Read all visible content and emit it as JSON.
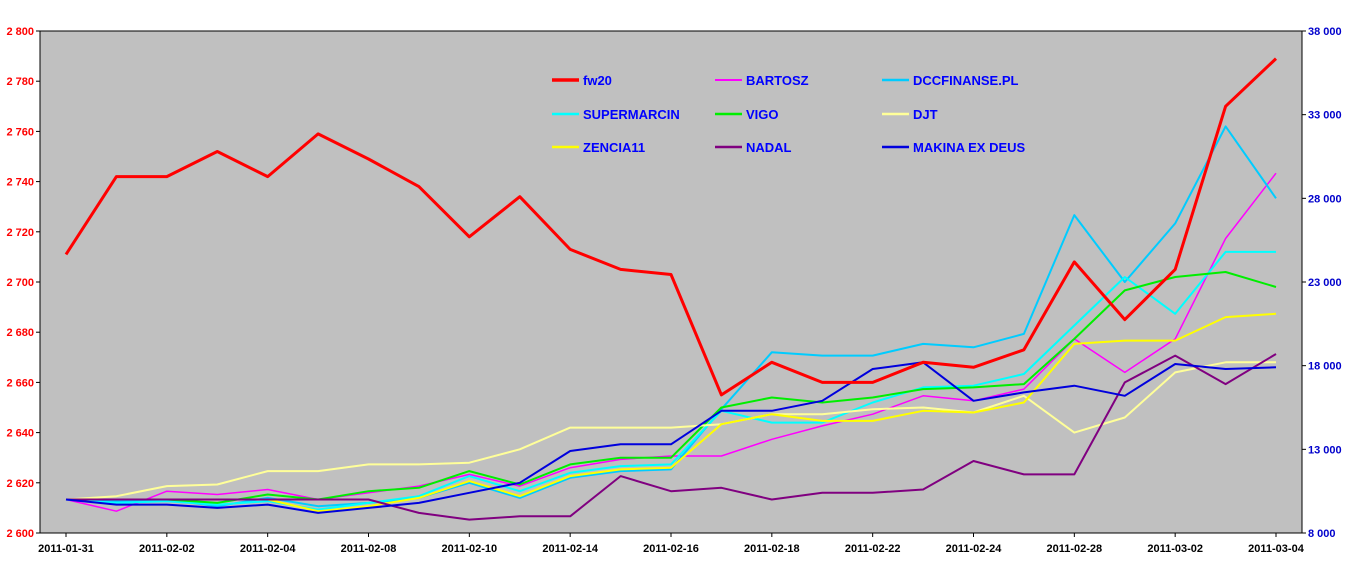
{
  "chart_data": {
    "type": "line",
    "title": "",
    "xlabel": "",
    "ylabel": "",
    "grid": false,
    "legend_position": "top-center",
    "background": "#c0c0c0",
    "left_axis": {
      "ylim": [
        2600,
        2800
      ],
      "tick_labels": [
        "2 600",
        "2 620",
        "2 640",
        "2 660",
        "2 680",
        "2 700",
        "2 720",
        "2 740",
        "2 760",
        "2 780",
        "2 800"
      ],
      "color": "#ff0000"
    },
    "right_axis": {
      "ylim": [
        8000,
        38000
      ],
      "tick_labels": [
        "8 000",
        "13 000",
        "18 000",
        "23 000",
        "28 000",
        "33 000",
        "38 000"
      ],
      "color": "#0000cc"
    },
    "x_tick_labels": [
      "2011-01-31",
      "2011-02-02",
      "2011-02-04",
      "2011-02-08",
      "2011-02-10",
      "2011-02-14",
      "2011-02-16",
      "2011-02-18",
      "2011-02-22",
      "2011-02-24",
      "2011-02-28",
      "2011-03-02",
      "2011-03-04"
    ],
    "x": [
      "2011-01-31",
      "2011-02-01",
      "2011-02-02",
      "2011-02-03",
      "2011-02-04",
      "2011-02-07",
      "2011-02-08",
      "2011-02-09",
      "2011-02-10",
      "2011-02-11",
      "2011-02-14",
      "2011-02-15",
      "2011-02-16",
      "2011-02-17",
      "2011-02-18",
      "2011-02-21",
      "2011-02-22",
      "2011-02-23",
      "2011-02-24",
      "2011-02-25",
      "2011-02-28",
      "2011-03-01",
      "2011-03-02",
      "2011-03-03",
      "2011-03-04"
    ],
    "series": [
      {
        "name": "fw20",
        "axis": "left",
        "color": "#ff0000",
        "width": 3,
        "values": [
          2711,
          2742,
          2742,
          2752,
          2742,
          2759,
          2749,
          2738,
          2718,
          2734,
          2713,
          2705,
          2703,
          2655,
          2668,
          2660,
          2660,
          2668,
          2666,
          2673,
          2708,
          2685,
          2705,
          2770,
          2789
        ]
      },
      {
        "name": "BARTOSZ",
        "axis": "right",
        "color": "#ff00ff",
        "width": 1.5,
        "values": [
          10000,
          9300,
          10500,
          10300,
          10600,
          10000,
          10400,
          10800,
          11500,
          10800,
          11900,
          12400,
          12600,
          12600,
          13600,
          14400,
          15100,
          16200,
          15900,
          16600,
          19600,
          17600,
          19600,
          25600,
          29500
        ]
      },
      {
        "name": "DCCFINANSE.PL",
        "axis": "right",
        "color": "#00ccff",
        "width": 2,
        "values": [
          10000,
          9900,
          10000,
          9600,
          10100,
          9600,
          9800,
          10100,
          11000,
          10100,
          11300,
          11700,
          11800,
          15400,
          18800,
          18600,
          18600,
          19300,
          19100,
          19900,
          27000,
          23000,
          26500,
          32300,
          28000
        ]
      },
      {
        "name": "SUPERMARCIN",
        "axis": "right",
        "color": "#00ffff",
        "width": 2,
        "values": [
          10000,
          9800,
          9900,
          9700,
          9900,
          9400,
          9800,
          10200,
          11400,
          10500,
          11600,
          12000,
          12100,
          15300,
          14600,
          14600,
          15800,
          16700,
          16800,
          17500,
          20400,
          23300,
          21100,
          24800,
          24800
        ]
      },
      {
        "name": "VIGO",
        "axis": "right",
        "color": "#00ee00",
        "width": 2,
        "values": [
          10000,
          10000,
          10000,
          9800,
          10300,
          10000,
          10500,
          10700,
          11700,
          10900,
          12100,
          12500,
          12500,
          15500,
          16100,
          15800,
          16100,
          16600,
          16700,
          16900,
          19600,
          22500,
          23300,
          23600,
          22700
        ]
      },
      {
        "name": "DJT",
        "axis": "right",
        "color": "#ffff99",
        "width": 2,
        "values": [
          10000,
          10200,
          10800,
          10900,
          11700,
          11700,
          12100,
          12100,
          12200,
          13000,
          14300,
          14300,
          14300,
          14500,
          15100,
          15100,
          15400,
          15500,
          15200,
          16200,
          14000,
          14900,
          17600,
          18200,
          18200
        ]
      },
      {
        "name": "ZENCIA11",
        "axis": "right",
        "color": "#ffff00",
        "width": 2,
        "values": [
          10000,
          10000,
          10000,
          10000,
          10000,
          9300,
          9600,
          10100,
          11100,
          10200,
          11400,
          11800,
          11900,
          14500,
          15100,
          14700,
          14700,
          15300,
          15200,
          15800,
          19300,
          19500,
          19500,
          20900,
          21100
        ]
      },
      {
        "name": "NADAL",
        "axis": "right",
        "color": "#800080",
        "width": 2,
        "values": [
          10000,
          10000,
          10000,
          10000,
          10000,
          10000,
          10000,
          9200,
          8800,
          9000,
          9000,
          11400,
          10500,
          10700,
          10000,
          10400,
          10400,
          10600,
          12300,
          11500,
          11500,
          17000,
          18600,
          16900,
          18700
        ]
      },
      {
        "name": "MAKINA EX DEUS",
        "axis": "right",
        "color": "#0000dd",
        "width": 2,
        "values": [
          10000,
          9700,
          9700,
          9500,
          9700,
          9200,
          9500,
          9800,
          10400,
          11000,
          12900,
          13300,
          13300,
          15300,
          15300,
          15900,
          17800,
          18200,
          15900,
          16400,
          16800,
          16200,
          18100,
          17800,
          17900
        ]
      }
    ]
  }
}
